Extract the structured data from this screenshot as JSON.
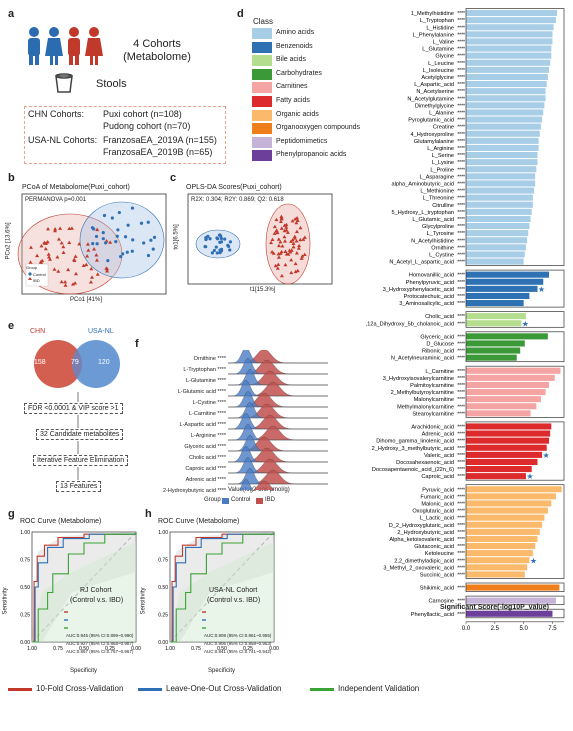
{
  "panel_labels": {
    "a": "a",
    "b": "b",
    "c": "c",
    "d": "d",
    "e": "e",
    "f": "f",
    "g": "g",
    "h": "h"
  },
  "panel_a": {
    "cohorts_title": "4 Cohorts\n(Metabolome)",
    "stools": "Stools",
    "chn_label": "CHN Cohorts:",
    "chn_1": "Puxi cohort (n=108)",
    "chn_2": "Pudong cohort (n=70)",
    "usa_label": "USA-NL Cohorts:",
    "usa_1": "FranzosaEA_2019A (n=155)",
    "usa_2": "FranzosaEA_2019B (n=65)",
    "colors": {
      "blue": "#2b6cb0",
      "red": "#c0392b"
    }
  },
  "panel_b": {
    "title": "PCoA of Metabolome(Puxi_cohort)",
    "stat": "PERMANOVA p=0.001",
    "xlabel": "PCo1 [41%]",
    "ylabel": "PCo2 [13.6%]",
    "legend_title": "Group",
    "legend": [
      "Control",
      "IBD"
    ]
  },
  "panel_c": {
    "title": "OPLS-DA Scores(Puxi_cohort)",
    "stat": "R2X: 0.304; R2Y: 0.869; Q2: 0.618",
    "xlabel": "t1[15.3%]",
    "ylabel": "to1[6.5%]"
  },
  "panel_e": {
    "left": "CHN",
    "right": "USA-NL",
    "n_left": "158",
    "n_mid": "79",
    "n_right": "120",
    "step1": "FDR <0.0001 & VIP score >1",
    "step2": "32 Candidate metabolites",
    "step3": "Iterative Feature Elimination",
    "step4": "13 Features"
  },
  "panel_f": {
    "rows": [
      {
        "name": "Ornithine",
        "sig": "****"
      },
      {
        "name": "L-Tryptophan",
        "sig": "****"
      },
      {
        "name": "L-Glutamine",
        "sig": "****"
      },
      {
        "name": "L-Glutamic acid",
        "sig": "****"
      },
      {
        "name": "L-Cystine",
        "sig": "****"
      },
      {
        "name": "L-Carnitine",
        "sig": "****"
      },
      {
        "name": "L-Aspartic acid",
        "sig": "****"
      },
      {
        "name": "L-Arginine",
        "sig": "****"
      },
      {
        "name": "Glyceric acid",
        "sig": "****"
      },
      {
        "name": "Cholic acid",
        "sig": "****"
      },
      {
        "name": "Caproic acid",
        "sig": "****"
      },
      {
        "name": "Adrenic acid",
        "sig": "****"
      },
      {
        "name": "2-Hydroxybutyric acid",
        "sig": "****"
      }
    ],
    "xlabel": "Value(log2-unit μmol/g)",
    "legend_title": "Group",
    "legend": [
      "Control",
      "IBD"
    ],
    "colors": {
      "control": "#4a7cc4",
      "ibd": "#c0504d"
    }
  },
  "panel_g": {
    "title": "ROC Curve (Metabolome)",
    "cohort": "RJ Cohort",
    "subtitle": "(Control v.s. IBD)",
    "xlabel": "Specificity",
    "ylabel": "Sensitivity",
    "xticks": [
      "1.00",
      "0.75",
      "0.50",
      "0.25",
      "0.00"
    ],
    "yticks": [
      "1.00",
      "0.75",
      "0.50",
      "0.25",
      "0.00"
    ],
    "auc": [
      "AUC:0.945 (95% CI:0.899~0.990)",
      "AUC:0.927 (95% CI:0.868~0.987)",
      "AUC:0.867 (95% CI:0.767~0.967)"
    ]
  },
  "panel_h": {
    "title": "ROC Curve (Metabolome)",
    "cohort": "USA-NL Cohort",
    "subtitle": "(Control v.s. IBD)",
    "xlabel": "Specificity",
    "ylabel": "Sensitivity",
    "xticks": [
      "1.00",
      "0.75",
      "0.50",
      "0.25",
      "0.00"
    ],
    "yticks": [
      "1.00",
      "0.75",
      "0.50",
      "0.25",
      "0.00"
    ],
    "auc": [
      "AUC:0.908 (95% CI:0.861~0.955)",
      "AUC:0.906 (95% CI:0.858~0.953)",
      "AUC:0.841 (95% CI:0.741~0.942)"
    ]
  },
  "roc_legend": [
    "10-Fold Cross-Validation",
    "Leave-One-Out Cross-Validation",
    "Independent Validation"
  ],
  "roc_colors": [
    "#c0392b",
    "#2f6fb5",
    "#3aa335"
  ],
  "chart_data": {
    "type": "bar",
    "xlabel": "Significant Score(-log10P_value)",
    "xticks": [
      "0.0",
      "2.5",
      "5.0",
      "7.5"
    ],
    "xlim": [
      0,
      8.5
    ],
    "legend_title": "Class",
    "classes": [
      {
        "name": "Amino acids",
        "color": "#a8cde6"
      },
      {
        "name": "Benzenoids",
        "color": "#2e72b3"
      },
      {
        "name": "Bile acids",
        "color": "#b4de8d"
      },
      {
        "name": "Carbohydrates",
        "color": "#3b9a37"
      },
      {
        "name": "Carnitines",
        "color": "#f4a5a3"
      },
      {
        "name": "Fatty acids",
        "color": "#dd2a2c"
      },
      {
        "name": "Organic acids",
        "color": "#fbb96b"
      },
      {
        "name": "Organooxygen compounds",
        "color": "#ee7f1b"
      },
      {
        "name": "Peptidomimetics",
        "color": "#c6b3d8"
      },
      {
        "name": "Phenylpropanoic acids",
        "color": "#6b3f9a"
      }
    ],
    "groups": [
      {
        "class": "Amino acids",
        "bars": [
          {
            "name": "1_Methylhistidine",
            "value": 7.9
          },
          {
            "name": "L_Tryptophan",
            "value": 7.8
          },
          {
            "name": "L_Histidine",
            "value": 7.6
          },
          {
            "name": "L_Phenylalanine",
            "value": 7.5
          },
          {
            "name": "L_Valine",
            "value": 7.5
          },
          {
            "name": "L_Glutamine",
            "value": 7.4
          },
          {
            "name": "Glycine",
            "value": 7.4
          },
          {
            "name": "L_Leucine",
            "value": 7.3
          },
          {
            "name": "L_Isoleucine",
            "value": 7.2
          },
          {
            "name": "Acetylglycine",
            "value": 7.1
          },
          {
            "name": "L_Aspartic_acid",
            "value": 7.0
          },
          {
            "name": "N_Acetylserine",
            "value": 6.9
          },
          {
            "name": "N_Acetylglutamine",
            "value": 6.9
          },
          {
            "name": "Dimethylglycine",
            "value": 6.8
          },
          {
            "name": "L_Alanine",
            "value": 6.7
          },
          {
            "name": "Pyroglutamic_acid",
            "value": 6.6
          },
          {
            "name": "Creatine",
            "value": 6.5
          },
          {
            "name": "4_Hydroxyproline",
            "value": 6.4
          },
          {
            "name": "Glutamylalanine",
            "value": 6.3
          },
          {
            "name": "L_Arginine",
            "value": 6.3
          },
          {
            "name": "L_Serine",
            "value": 6.2
          },
          {
            "name": "L_Lysine",
            "value": 6.2
          },
          {
            "name": "L_Proline",
            "value": 6.1
          },
          {
            "name": "L_Asparagine",
            "value": 6.0
          },
          {
            "name": "alpha_Aminobutyric_acid",
            "value": 6.0
          },
          {
            "name": "L_Methionine",
            "value": 5.9
          },
          {
            "name": "L_Threonine",
            "value": 5.8
          },
          {
            "name": "Citrulline",
            "value": 5.8
          },
          {
            "name": "5_Hydroxy_L_tryptophan",
            "value": 5.7
          },
          {
            "name": "L_Glutamic_acid",
            "value": 5.6
          },
          {
            "name": "Glycylproline",
            "value": 5.5
          },
          {
            "name": "L_Tyrosine",
            "value": 5.4
          },
          {
            "name": "N_Acetylhistidine",
            "value": 5.3
          },
          {
            "name": "Ornithine",
            "value": 5.2
          },
          {
            "name": "L_Cystine",
            "value": 5.1
          },
          {
            "name": "N_Acetyl_L_aspartic_acid",
            "value": 5.0
          }
        ]
      },
      {
        "class": "Benzenoids",
        "bars": [
          {
            "name": "Homovanillic_acid",
            "value": 7.2
          },
          {
            "name": "Phenylpyruvic_acid",
            "value": 6.7
          },
          {
            "name": "3_Hydroxyphenylacetic_acid",
            "value": 6.2,
            "star": true
          },
          {
            "name": "Protocatechuic_acid",
            "value": 5.5
          },
          {
            "name": "3_Aminosalicylic_acid",
            "value": 5.0
          }
        ]
      },
      {
        "class": "Bile acids",
        "bars": [
          {
            "name": "Cholic_acid",
            "value": 5.2
          },
          {
            "name": "3b,12a_Dihydroxy_5b_cholanoic_acid",
            "value": 4.8,
            "star": true
          }
        ]
      },
      {
        "class": "Carbohydrates",
        "bars": [
          {
            "name": "Glyceric_acid",
            "value": 7.1
          },
          {
            "name": "D_Glucose",
            "value": 5.1
          },
          {
            "name": "Ribonic_acid",
            "value": 4.7
          },
          {
            "name": "N_Acetylneuraminic_acid",
            "value": 4.4
          }
        ]
      },
      {
        "class": "Carnitines",
        "bars": [
          {
            "name": "L_Carnitine",
            "value": 8.2
          },
          {
            "name": "3_Hydroxyisovalerylcarnitine",
            "value": 7.7
          },
          {
            "name": "Palmitoylcarnitine",
            "value": 7.2
          },
          {
            "name": "2_Methylbutyroylcarnitine",
            "value": 6.9
          },
          {
            "name": "Malonylcarnitine",
            "value": 6.5
          },
          {
            "name": "Methylmalonylcarnitine",
            "value": 6.1
          },
          {
            "name": "Stearoylcarnitine",
            "value": 5.6
          }
        ]
      },
      {
        "class": "Fatty acids",
        "bars": [
          {
            "name": "Arachidonic_acid",
            "value": 7.4
          },
          {
            "name": "Adrenic_acid",
            "value": 7.3
          },
          {
            "name": "Dihomo_gamma_linolenic_acid",
            "value": 7.2
          },
          {
            "name": "2_Hydroxy_3_methylbutyric_acid",
            "value": 7.0
          },
          {
            "name": "Valeric_acid",
            "value": 6.6,
            "star": true
          },
          {
            "name": "Docosahexaenoic_acid",
            "value": 6.2
          },
          {
            "name": "Docosapentaenoic_acid_(22n_6)",
            "value": 5.7
          },
          {
            "name": "Caproic_acid",
            "value": 5.2,
            "star": true
          }
        ]
      },
      {
        "class": "Organic acids",
        "bars": [
          {
            "name": "Pyruvic_acid",
            "value": 8.3
          },
          {
            "name": "Fumaric_acid",
            "value": 7.8
          },
          {
            "name": "Malonic_acid",
            "value": 7.4
          },
          {
            "name": "Oxoglutaric_acid",
            "value": 7.1
          },
          {
            "name": "L_Lactic_acid",
            "value": 6.8
          },
          {
            "name": "D_2_Hydroxyglutaric_acid",
            "value": 6.6
          },
          {
            "name": "2_Hydroxybutyric_acid",
            "value": 6.4
          },
          {
            "name": "Alpha_ketoisovaleric_acid",
            "value": 6.2
          },
          {
            "name": "Glutaconic_acid",
            "value": 6.0
          },
          {
            "name": "Ketoleucine",
            "value": 5.8
          },
          {
            "name": "2,2_dimethyladipic_acid",
            "value": 5.5,
            "star": true
          },
          {
            "name": "3_Methyl_2_oxovaleric_acid",
            "value": 5.3
          },
          {
            "name": "Succinic_acid",
            "value": 5.1
          }
        ]
      },
      {
        "class": "Organooxygen compounds",
        "bars": [
          {
            "name": "Shikimic_acid",
            "value": 8.1
          }
        ]
      },
      {
        "class": "Peptidomimetics",
        "bars": [
          {
            "name": "Carnosine",
            "value": 7.8
          }
        ]
      },
      {
        "class": "Phenylpropanoic acids",
        "bars": [
          {
            "name": "Phenyllactic_acid",
            "value": 7.5
          }
        ]
      }
    ]
  }
}
